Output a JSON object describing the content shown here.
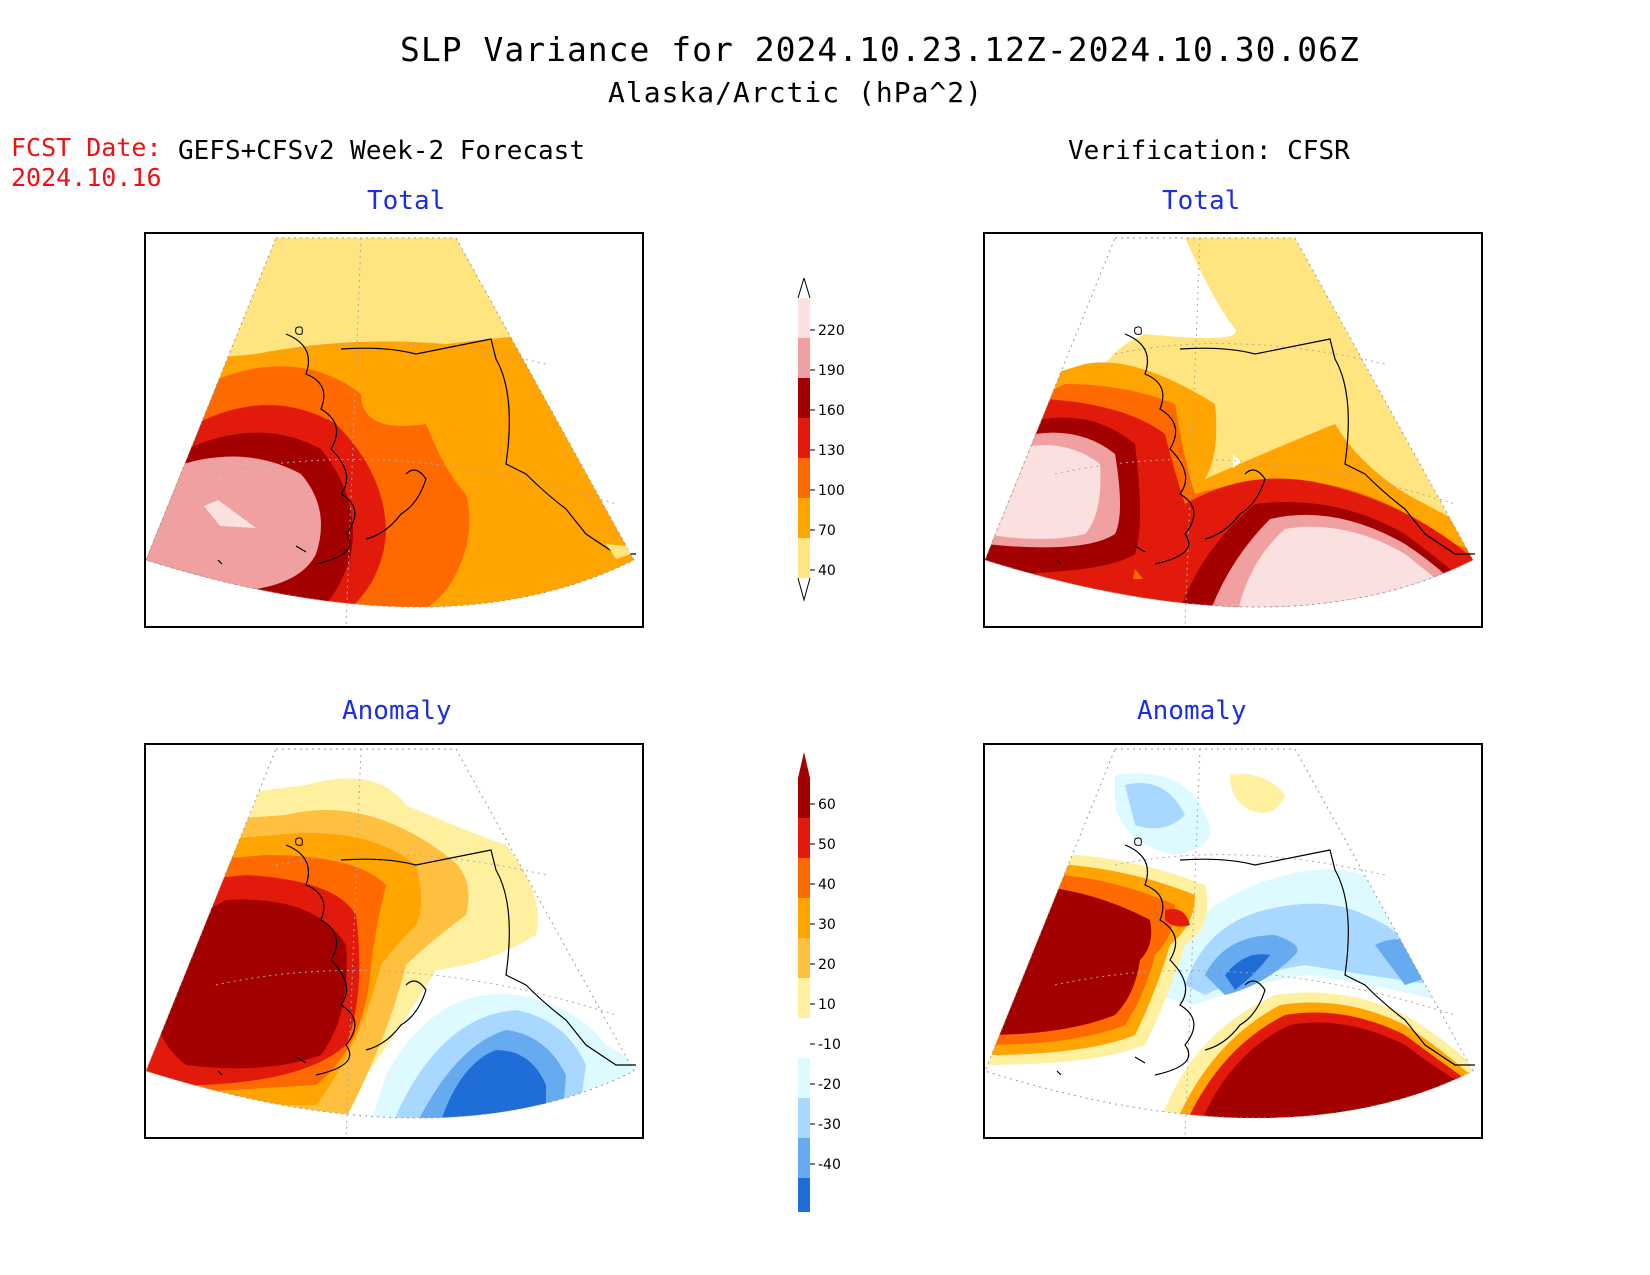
{
  "header": {
    "title": "SLP Variance for 2024.10.23.12Z-2024.10.30.06Z",
    "subtitle": "Alaska/Arctic (hPa^2)",
    "fcst_label": "FCST Date:",
    "fcst_date": "2024.10.16",
    "forecast_label": "GEFS+CFSv2 Week-2 Forecast",
    "verification_label": "Verification: CFSR"
  },
  "panels": {
    "forecast_total": "Total",
    "verification_total": "Total",
    "forecast_anomaly": "Anomaly",
    "verification_anomaly": "Anomaly"
  },
  "colorbars": {
    "total": {
      "levels": [
        "40",
        "70",
        "100",
        "130",
        "160",
        "190",
        "220"
      ],
      "colors": [
        "#ffe480",
        "#ffa400",
        "#ff6a00",
        "#e21a0c",
        "#a30000",
        "#f0a0a0",
        "#fbe0e0"
      ]
    },
    "anomaly": {
      "levels": [
        "60",
        "50",
        "40",
        "30",
        "20",
        "10",
        "-10",
        "-20",
        "-30",
        "-40"
      ],
      "colors": [
        "#a30000",
        "#e21a0c",
        "#ff6a00",
        "#ffa400",
        "#ffc040",
        "#fff0a0",
        "#ffffff",
        "#dcfaff",
        "#a8d8ff",
        "#66aaf0",
        "#1f6ed8"
      ]
    }
  },
  "colors": {
    "title_red": "#f01010",
    "label_blue": "#1a2ee8"
  }
}
